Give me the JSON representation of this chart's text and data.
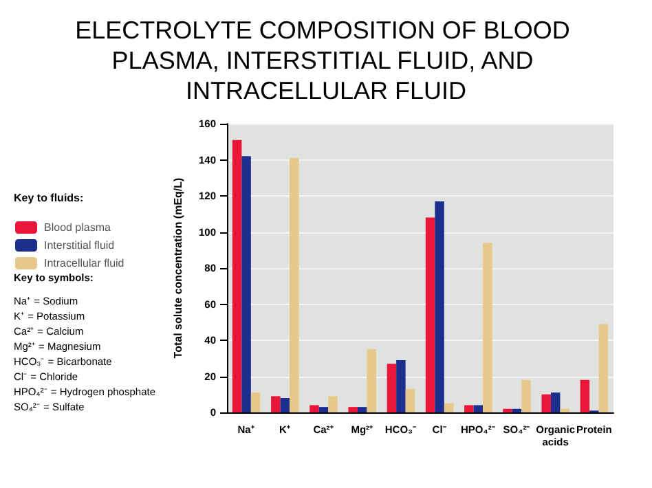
{
  "chart_data": {
    "type": "bar",
    "title": "ELECTROLYTE COMPOSITION OF BLOOD PLASMA, INTERSTITIAL FLUID, AND INTRACELLULAR FLUID",
    "ylabel": "Total solute concentration (mEq/L)",
    "legend_title": "Key to fluids:",
    "categories": [
      "Na⁺",
      "K⁺",
      "Ca²⁺",
      "Mg²⁺",
      "HCO₃⁻",
      "Cl⁻",
      "HPO₄²⁻",
      "SO₄²⁻",
      "Organic acids",
      "Protein"
    ],
    "series": [
      {
        "name": "Blood plasma",
        "color": "#e8173a",
        "values": [
          151,
          9,
          4,
          3,
          27,
          108,
          4,
          2,
          10,
          18
        ]
      },
      {
        "name": "Interstitial fluid",
        "color": "#1c2f8f",
        "values": [
          142,
          8,
          3,
          3,
          29,
          117,
          4,
          2,
          11,
          1
        ]
      },
      {
        "name": "Intracellular fluid",
        "color": "#e8c88a",
        "values": [
          11,
          141,
          9,
          35,
          13,
          5,
          94,
          18,
          2,
          49
        ]
      }
    ],
    "ylim": [
      0,
      160
    ],
    "yticks": [
      0,
      20,
      40,
      60,
      80,
      100,
      120,
      140,
      160
    ],
    "grid": "y",
    "legend": "left",
    "annotations": [
      "Key to symbols:",
      "Na⁺ = Sodium",
      "K⁺ = Potassium",
      "Ca²⁺ = Calcium",
      "Mg²⁺ = Magnesium",
      "HCO₃⁻ = Bicarbonate",
      "Cl⁻ = Chloride",
      "HPO₄²⁻ = Hydrogen phosphate",
      "SO₄²⁻ = Sulfate"
    ]
  }
}
